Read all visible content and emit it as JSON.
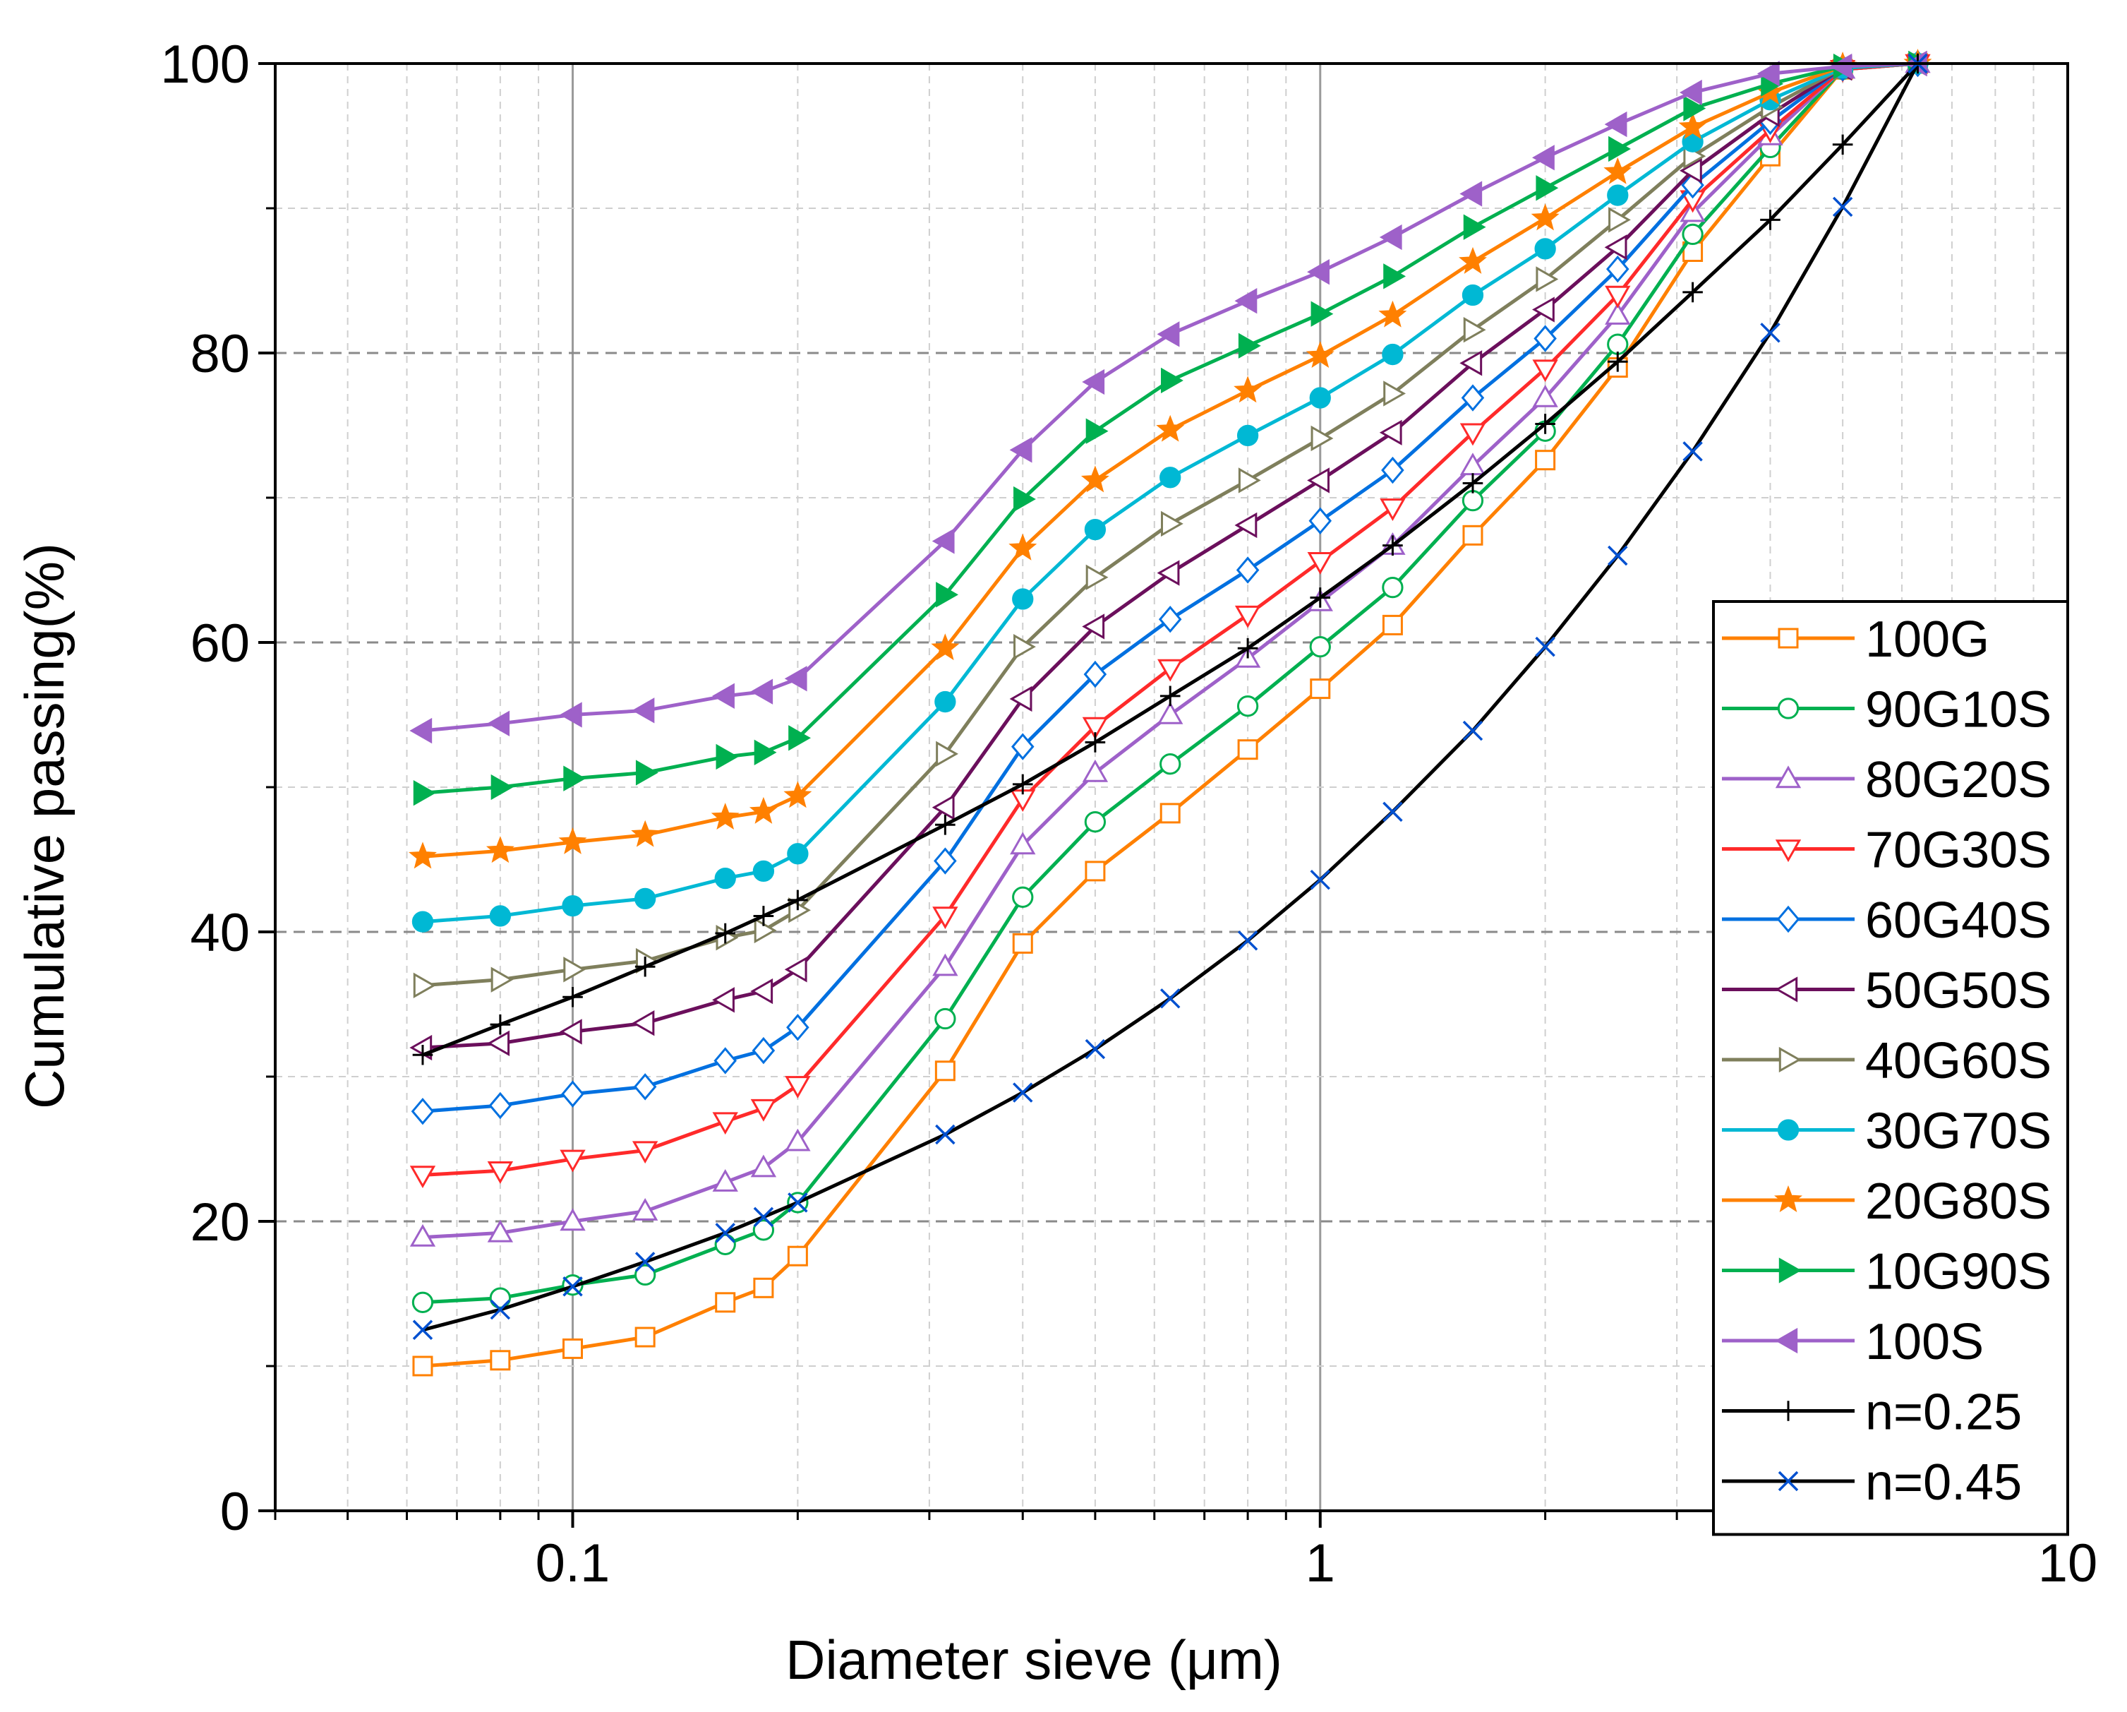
{
  "chart_data": {
    "type": "line",
    "xscale": "log",
    "xlabel": "Diameter sieve (μm)",
    "ylabel": "Cumulative passing(%)",
    "xlim": [
      0.04,
      10
    ],
    "ylim": [
      0,
      100
    ],
    "xticks": [
      {
        "value": 0.1,
        "label": "0.1"
      },
      {
        "value": 1,
        "label": "1"
      },
      {
        "value": 10,
        "label": "10"
      }
    ],
    "yticks": [
      {
        "value": 0,
        "label": "0"
      },
      {
        "value": 20,
        "label": "20"
      },
      {
        "value": 40,
        "label": "40"
      },
      {
        "value": 60,
        "label": "60"
      },
      {
        "value": 80,
        "label": "80"
      },
      {
        "value": 100,
        "label": "100"
      }
    ],
    "grid": true,
    "legend_position": "bottom-right",
    "x": [
      0.063,
      0.08,
      0.1,
      0.125,
      0.16,
      0.18,
      0.2,
      0.315,
      0.4,
      0.5,
      0.63,
      0.8,
      1.0,
      1.25,
      1.6,
      2.0,
      2.5,
      3.15,
      4.0,
      5.0,
      6.3
    ],
    "series": [
      {
        "name": "100G",
        "color": "#ff8000",
        "marker": "square",
        "filled": false,
        "values": [
          10,
          10.4,
          11.2,
          12,
          14.4,
          15.4,
          17.6,
          30.4,
          39.2,
          44.2,
          48.2,
          52.6,
          56.8,
          61.2,
          67.4,
          72.6,
          79,
          87,
          93.6,
          99.6,
          100
        ]
      },
      {
        "name": "90G10S",
        "color": "#00b050",
        "marker": "circle",
        "filled": false,
        "values": [
          14.4,
          14.7,
          15.6,
          16.3,
          18.4,
          19.4,
          21.3,
          34,
          42.4,
          47.6,
          51.6,
          55.6,
          59.7,
          63.8,
          69.8,
          74.6,
          80.6,
          88.2,
          94.2,
          99.6,
          100
        ]
      },
      {
        "name": "80G20S",
        "color": "#9e61c9",
        "marker": "triangle-up",
        "filled": false,
        "values": [
          18.9,
          19.2,
          20,
          20.7,
          22.7,
          23.7,
          25.5,
          37.6,
          46,
          51,
          55,
          58.9,
          62.8,
          66.7,
          72.2,
          76.9,
          82.6,
          89.7,
          95,
          99.6,
          100
        ]
      },
      {
        "name": "70G30S",
        "color": "#ff2a2a",
        "marker": "triangle-down",
        "filled": false,
        "values": [
          23.2,
          23.5,
          24.3,
          24.9,
          26.9,
          27.8,
          29.4,
          41.1,
          49.2,
          54.2,
          58.2,
          61.9,
          65.6,
          69.3,
          74.5,
          78.9,
          84,
          90.6,
          95.4,
          99.6,
          100
        ]
      },
      {
        "name": "60G40S",
        "color": "#0070e0",
        "marker": "diamond",
        "filled": false,
        "values": [
          27.6,
          28,
          28.8,
          29.3,
          31.1,
          31.8,
          33.4,
          44.9,
          52.8,
          57.8,
          61.6,
          65,
          68.4,
          71.9,
          76.9,
          81,
          85.8,
          91.6,
          96,
          99.7,
          100
        ]
      },
      {
        "name": "50G50S",
        "color": "#6b0f5c",
        "marker": "triangle-left",
        "filled": false,
        "values": [
          32,
          32.3,
          33.1,
          33.7,
          35.3,
          35.9,
          37.4,
          48.6,
          56.1,
          61.1,
          64.8,
          68.1,
          71.2,
          74.5,
          79.3,
          83,
          87.3,
          92.6,
          96.5,
          99.7,
          100
        ]
      },
      {
        "name": "40G60S",
        "color": "#7f7f5c",
        "marker": "triangle-right",
        "filled": false,
        "values": [
          36.3,
          36.7,
          37.4,
          38,
          39.6,
          40.1,
          41.5,
          52.3,
          59.7,
          64.5,
          68.2,
          71.2,
          74.1,
          77.2,
          81.6,
          85.1,
          89.2,
          93.6,
          97,
          99.7,
          100
        ]
      },
      {
        "name": "30G70S",
        "color": "#00b8d4",
        "marker": "circle",
        "filled": true,
        "values": [
          40.7,
          41.1,
          41.8,
          42.3,
          43.7,
          44.2,
          45.4,
          55.9,
          63,
          67.8,
          71.4,
          74.3,
          76.9,
          79.9,
          84,
          87.2,
          90.9,
          94.6,
          97.5,
          99.7,
          100
        ]
      },
      {
        "name": "20G80S",
        "color": "#ff8000",
        "marker": "star",
        "filled": true,
        "values": [
          45.2,
          45.6,
          46.2,
          46.7,
          47.9,
          48.3,
          49.4,
          59.6,
          66.5,
          71.2,
          74.7,
          77.4,
          79.8,
          82.6,
          86.3,
          89.3,
          92.5,
          95.6,
          98,
          99.8,
          100
        ]
      },
      {
        "name": "10G90S",
        "color": "#00b050",
        "marker": "triangle-right",
        "filled": true,
        "values": [
          49.6,
          50,
          50.6,
          51,
          52.1,
          52.4,
          53.4,
          63.3,
          69.9,
          74.6,
          78.1,
          80.5,
          82.7,
          85.3,
          88.7,
          91.4,
          94.1,
          96.9,
          98.6,
          99.8,
          100
        ]
      },
      {
        "name": "100S",
        "color": "#9e61c9",
        "marker": "triangle-left",
        "filled": true,
        "values": [
          53.9,
          54.4,
          55,
          55.3,
          56.3,
          56.6,
          57.5,
          67,
          73.3,
          78,
          81.3,
          83.6,
          85.6,
          88,
          91,
          93.5,
          95.8,
          98,
          99.3,
          99.8,
          100
        ]
      },
      {
        "name": "n=0.25",
        "color": "#000000",
        "marker": "plus",
        "filled": false,
        "values": [
          31.5,
          33.6,
          35.5,
          37.6,
          39.9,
          41.1,
          42.2,
          47.4,
          50.2,
          53.1,
          56.3,
          59.6,
          63.1,
          66.7,
          71,
          75.1,
          79.4,
          84.2,
          89.2,
          94.4,
          100
        ]
      },
      {
        "name": "n=0.45",
        "color": "#000000",
        "marker": "x",
        "markerColor": "#0050d0",
        "filled": false,
        "values": [
          12.5,
          13.9,
          15.5,
          17.2,
          19.2,
          20.3,
          21.3,
          26,
          28.9,
          31.9,
          35.4,
          39.4,
          43.6,
          48.3,
          53.9,
          59.7,
          66,
          73.2,
          81.4,
          90.1,
          100
        ]
      }
    ]
  }
}
